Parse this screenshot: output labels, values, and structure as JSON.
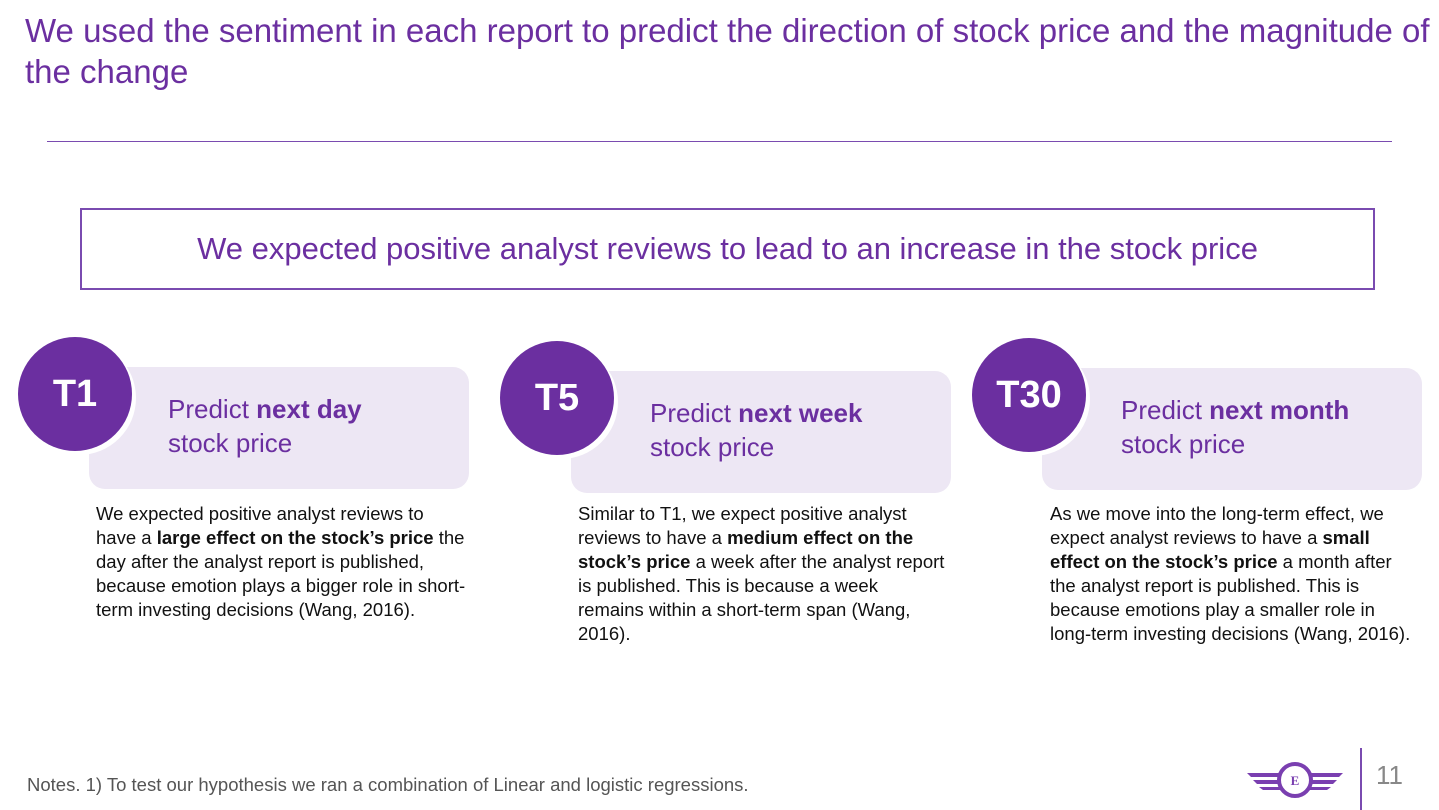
{
  "title": "We used the sentiment in each report to predict the direction of stock price and the magnitude of the change",
  "hypothesis": "We expected positive analyst reviews to lead to an increase in the stock price",
  "cards": [
    {
      "badge": "T1",
      "predict": "Predict ",
      "predict_bold": "next day",
      "predict_line2": "stock price",
      "desc": [
        {
          "t": "We expected positive analyst reviews to have a ",
          "b": false
        },
        {
          "t": "large effect on the stock’s price",
          "b": true
        },
        {
          "t": " the day after the analyst report is published, because emotion plays a bigger role in short-term investing decisions (Wang, 2016).",
          "b": false
        }
      ]
    },
    {
      "badge": "T5",
      "predict": "Predict ",
      "predict_bold": "next week",
      "predict_line2": "stock price",
      "desc": [
        {
          "t": "Similar to T1, we expect positive analyst reviews to have a ",
          "b": false
        },
        {
          "t": "medium effect on the stock’s price",
          "b": true
        },
        {
          "t": " a week after the analyst report is published. This is because a week remains within a short-term span (Wang, 2016).",
          "b": false
        }
      ]
    },
    {
      "badge": "T30",
      "predict": "Predict ",
      "predict_bold": "next month",
      "predict_line2": "stock price",
      "desc": [
        {
          "t": "As we move into the long-term effect, we expect analyst reviews to have a ",
          "b": false
        },
        {
          "t": "small effect on the stock’s price",
          "b": true
        },
        {
          "t": " a month after the analyst report is published. This is because emotions play a smaller role in long-term investing decisions (Wang, 2016).",
          "b": false
        }
      ]
    }
  ],
  "notes": "Notes. 1) To test our hypothesis we ran a combination of Linear and logistic regressions.",
  "logo": {
    "letter": "E",
    "icon": "winged-emblem-icon"
  },
  "page_number": "11",
  "colors": {
    "accent": "#6b2fa0",
    "card_bg": "#ede7f4",
    "rule": "#7a4bb0"
  }
}
